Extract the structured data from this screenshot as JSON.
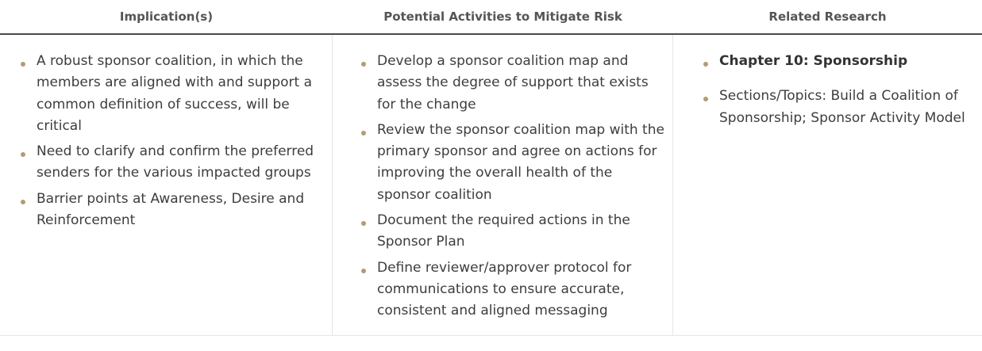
{
  "headers": {
    "implications": "Implication(s)",
    "activities": "Potential Activities to Mitigate Risk",
    "research": "Related Research"
  },
  "implications": [
    "A robust sponsor coalition, in which the members are aligned with and support a common definition of success, will be critical",
    "Need to clarify and confirm the preferred senders for the various impacted groups",
    "Barrier points at Awareness, Desire and Reinforcement"
  ],
  "activities": [
    "Develop a sponsor coalition map and assess the degree of support that exists for the change",
    "Review the sponsor coalition map with the primary sponsor and agree on actions for improving the overall health of the sponsor coalition",
    "Document the required actions in the Sponsor Plan",
    "Define reviewer/approver protocol for communications to ensure accurate, consistent and aligned messaging"
  ],
  "research": [
    "Chapter 10: Sponsorship",
    "Sections/Topics: Build a Coalition of Sponsorship; Sponsor Activity Model"
  ],
  "colors": {
    "bullet": "#b39b73",
    "header_rule": "#4a4a4a",
    "text": "#3d3d3d"
  }
}
